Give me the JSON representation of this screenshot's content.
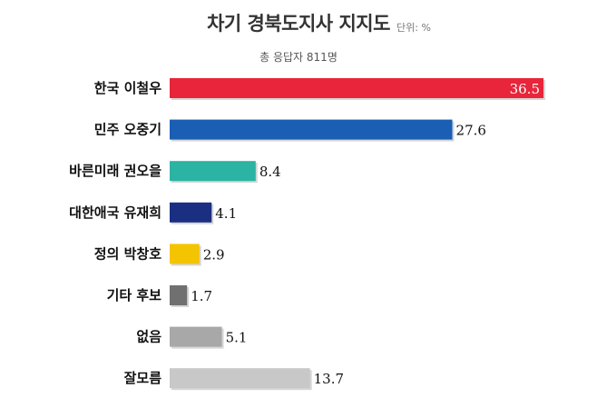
{
  "chart_data": {
    "type": "bar",
    "orientation": "horizontal",
    "title": "차기 경북도지사 지지도",
    "unit": "단위: %",
    "subtitle": "총 응답자 811명",
    "categories": [
      "한국 이철우",
      "민주 오중기",
      "바른미래 권오을",
      "대한애국 유재희",
      "정의 박창호",
      "기타 후보",
      "없음",
      "잘모름"
    ],
    "values": [
      36.5,
      27.6,
      8.4,
      4.1,
      2.9,
      1.7,
      5.1,
      13.7
    ],
    "value_labels": [
      "36.5",
      "27.6",
      "8.4",
      "4.1",
      "2.9",
      "1.7",
      "5.1",
      "13.7"
    ],
    "colors": [
      "#e8253a",
      "#1a5fb4",
      "#2bb3a3",
      "#1b2f82",
      "#f5c400",
      "#707070",
      "#a8a8a8",
      "#c8c8c8"
    ],
    "xlim": [
      0,
      36.5
    ],
    "grid": false
  }
}
